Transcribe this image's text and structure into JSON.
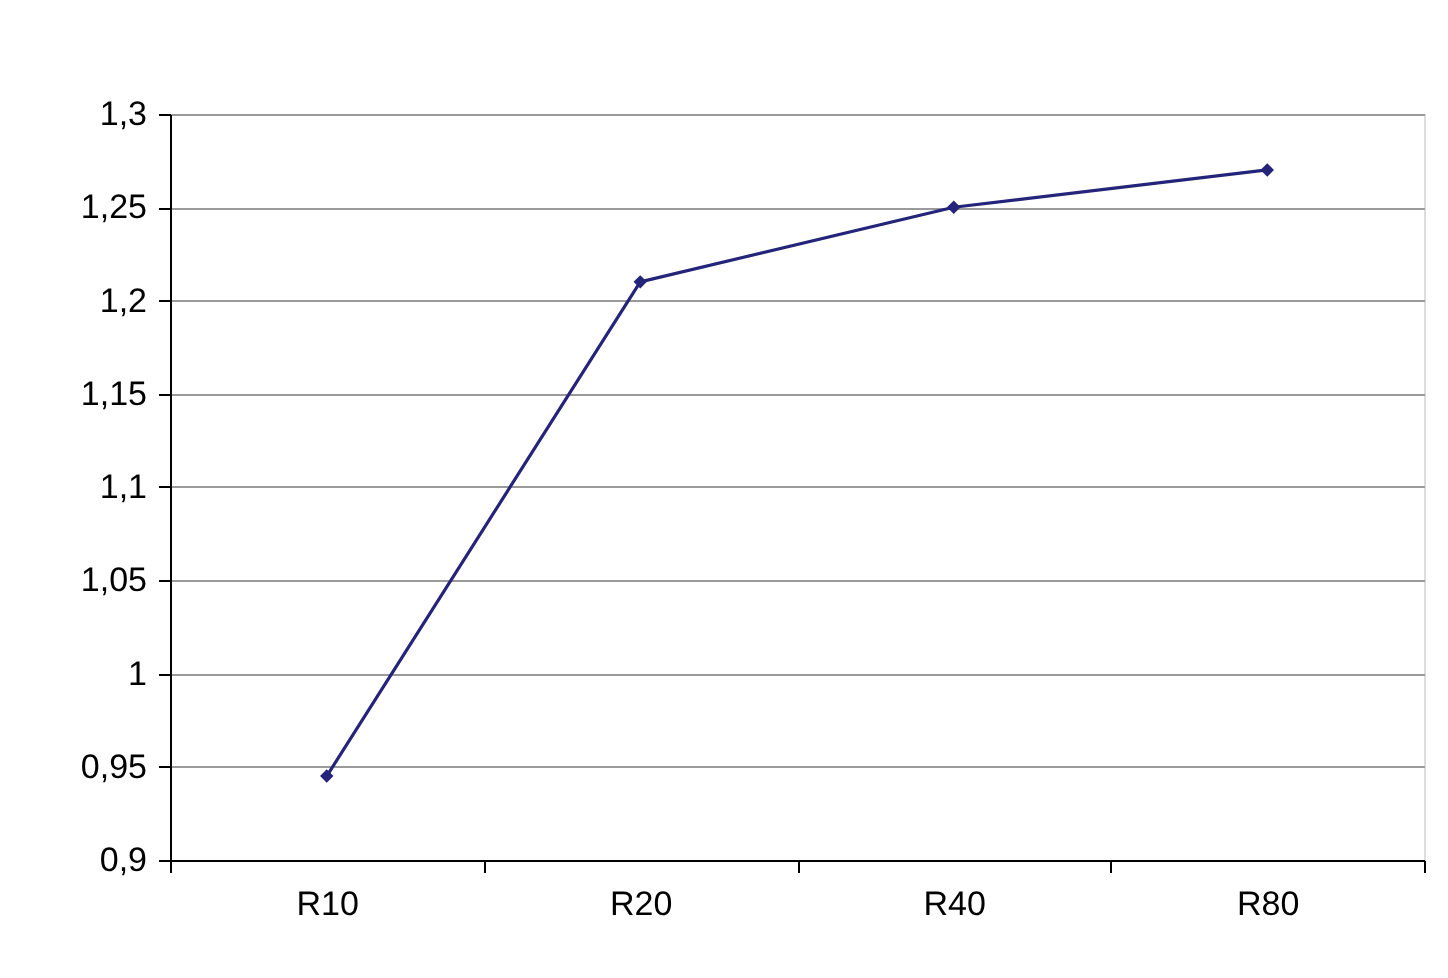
{
  "chart_data": {
    "type": "line",
    "categories": [
      "R10",
      "R20",
      "R40",
      "R80"
    ],
    "series": [
      {
        "color": "#24247a",
        "values": [
          0.945,
          1.21,
          1.25,
          1.27
        ]
      }
    ],
    "ylim": [
      0.9,
      1.3
    ],
    "yticks": [
      {
        "value": 0.9,
        "label": "0,9"
      },
      {
        "value": 0.95,
        "label": "0,95"
      },
      {
        "value": 1,
        "label": "1"
      },
      {
        "value": 1.05,
        "label": "1,05"
      },
      {
        "value": 1.1,
        "label": "1,1"
      },
      {
        "value": 1.15,
        "label": "1,15"
      },
      {
        "value": 1.2,
        "label": "1,2"
      },
      {
        "value": 1.25,
        "label": "1,25"
      },
      {
        "value": 1.3,
        "label": "1,3"
      }
    ],
    "grid": "y",
    "marker": "diamond",
    "line_style": "solid"
  }
}
